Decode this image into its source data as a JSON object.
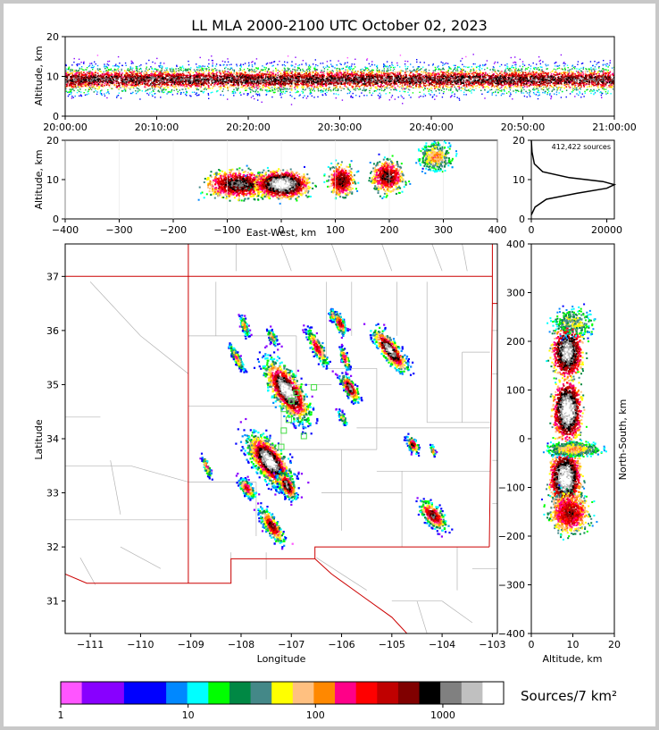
{
  "title": "LL MLA 2000-2100 UTC October 02, 2023",
  "time_height": {
    "ylabel": "Altitude, km",
    "yticks": [
      "0",
      "10",
      "20"
    ],
    "xticks": [
      "20:00:00",
      "20:10:00",
      "20:20:00",
      "20:30:00",
      "20:40:00",
      "20:50:00",
      "21:00:00"
    ]
  },
  "ew_height": {
    "xlabel": "East-West, km",
    "ylabel": "Altitude, km",
    "xticks": [
      "−400",
      "−300",
      "−200",
      "−100",
      "0",
      "100",
      "200",
      "300",
      "400"
    ],
    "yticks": [
      "0",
      "10",
      "20"
    ]
  },
  "histogram": {
    "annotation": "412,422 sources",
    "xticks": [
      "0",
      "20000"
    ],
    "yticks": [
      "0",
      "10",
      "20"
    ]
  },
  "map": {
    "xlabel": "Longitude",
    "ylabel": "Latitude",
    "xticks": [
      "−111",
      "−110",
      "−109",
      "−108",
      "−107",
      "−106",
      "−105",
      "−104",
      "−103"
    ],
    "yticks": [
      "31",
      "32",
      "33",
      "34",
      "35",
      "36",
      "37"
    ]
  },
  "ns_height": {
    "xlabel": "Altitude, km",
    "ylabel": "North-South, km",
    "xticks": [
      "0",
      "10",
      "20"
    ],
    "yticks": [
      "−400",
      "−300",
      "−200",
      "−100",
      "0",
      "100",
      "200",
      "300",
      "400"
    ]
  },
  "colorbar": {
    "title": "Sources/7 km²",
    "ticks": [
      "1",
      "10",
      "100",
      "1000"
    ],
    "colors": [
      "#ff55ff",
      "#8800ff",
      "#8800ff",
      "#0000ff",
      "#0000ff",
      "#0088ff",
      "#00ffff",
      "#00ff00",
      "#008844",
      "#448888",
      "#ffff00",
      "#ffc080",
      "#ff8800",
      "#ff0088",
      "#ff0000",
      "#c00000",
      "#800000",
      "#000000",
      "#808080",
      "#c0c0c0",
      "#ffffff"
    ]
  },
  "chart_data": [
    {
      "type": "heatmap",
      "panel": "time-altitude",
      "x_range": [
        "20:00:00",
        "21:00:00"
      ],
      "ylim": [
        0,
        20
      ],
      "ylabel": "Altitude, km",
      "description_values": {
        "dense_altitude_km": [
          6,
          13
        ],
        "peak_altitude_km": 9
      }
    },
    {
      "type": "heatmap",
      "panel": "east-west-altitude",
      "xlim": [
        -400,
        400
      ],
      "ylim": [
        0,
        20
      ],
      "xlabel": "East-West, km",
      "ylabel": "Altitude, km",
      "clusters": [
        {
          "x": -80,
          "z": 9,
          "intensity": "high"
        },
        {
          "x": 0,
          "z": 9,
          "intensity": "max"
        },
        {
          "x": 110,
          "z": 10,
          "intensity": "high"
        },
        {
          "x": 195,
          "z": 11,
          "intensity": "high"
        },
        {
          "x": 285,
          "z": 16,
          "intensity": "medium"
        }
      ]
    },
    {
      "type": "line",
      "panel": "altitude-histogram",
      "xlim": [
        0,
        22000
      ],
      "ylim": [
        0,
        20
      ],
      "x": [
        0,
        1000,
        4000,
        12000,
        20000,
        22500,
        19000,
        10000,
        3000,
        800,
        200,
        0
      ],
      "y": [
        1,
        3,
        5,
        6.5,
        7.8,
        8.7,
        9.5,
        10.5,
        12,
        14,
        17,
        20
      ]
    },
    {
      "type": "heatmap",
      "panel": "plan-view",
      "xlim": [
        -111.5,
        -102.9
      ],
      "ylim": [
        30.4,
        37.6
      ],
      "xlabel": "Longitude",
      "ylabel": "Latitude"
    },
    {
      "type": "heatmap",
      "panel": "north-south-altitude",
      "xlim": [
        0,
        20
      ],
      "ylim": [
        -400,
        400
      ],
      "xlabel": "Altitude, km",
      "ylabel": "North-South, km"
    }
  ]
}
